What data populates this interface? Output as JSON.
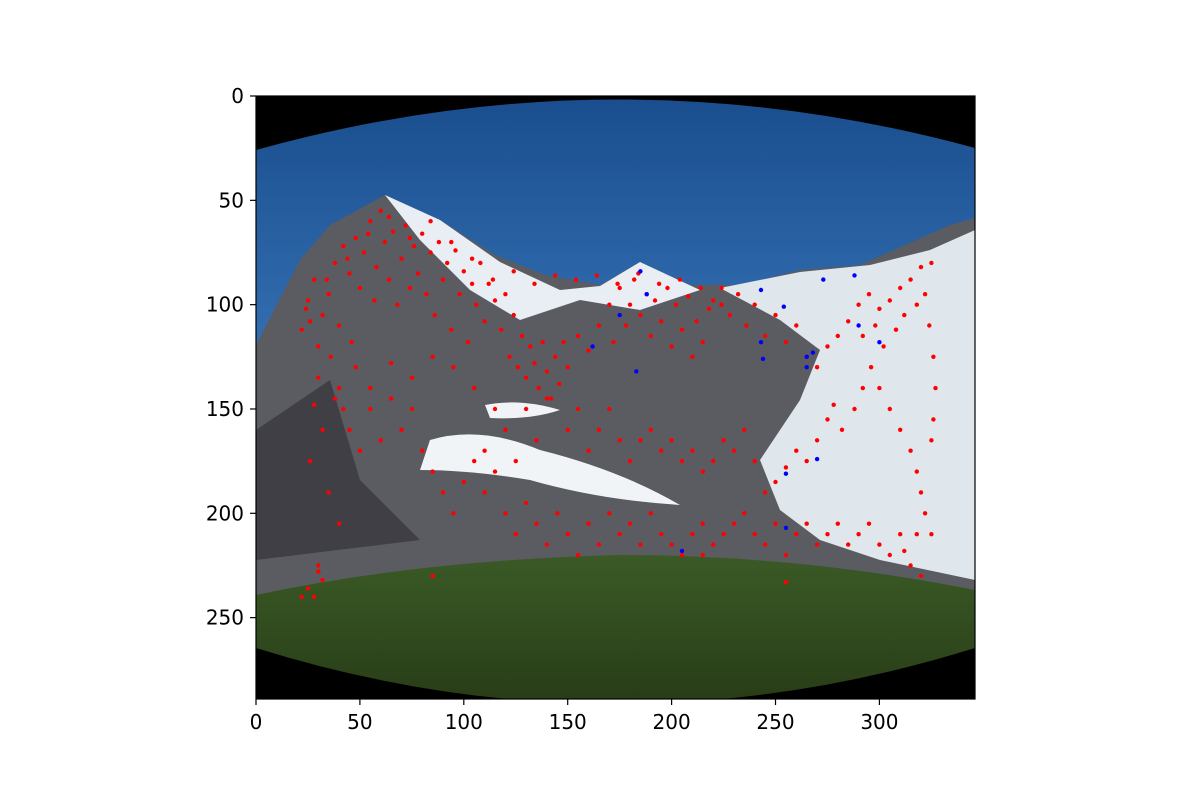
{
  "chart_data": {
    "type": "scatter",
    "title": "",
    "xlabel": "",
    "ylabel": "",
    "xlim": [
      0,
      346
    ],
    "ylim": [
      289,
      0
    ],
    "x_ticks": [
      "0",
      "50",
      "100",
      "150",
      "200",
      "250",
      "300"
    ],
    "y_ticks": [
      "0",
      "50",
      "100",
      "150",
      "200",
      "250"
    ],
    "grid": false,
    "background_image": "mountain photograph (north face with glaciers, blue sky, green meadow) with curved black borders",
    "series": [
      {
        "color": "#ff0000",
        "marker": "dot",
        "points": [
          [
            22,
            112
          ],
          [
            25,
            98
          ],
          [
            28,
            88
          ],
          [
            30,
            120
          ],
          [
            32,
            105
          ],
          [
            35,
            95
          ],
          [
            38,
            80
          ],
          [
            40,
            110
          ],
          [
            42,
            72
          ],
          [
            45,
            85
          ],
          [
            48,
            68
          ],
          [
            50,
            92
          ],
          [
            52,
            75
          ],
          [
            55,
            60
          ],
          [
            57,
            98
          ],
          [
            58,
            82
          ],
          [
            60,
            55
          ],
          [
            62,
            70
          ],
          [
            64,
            88
          ],
          [
            66,
            65
          ],
          [
            68,
            100
          ],
          [
            70,
            78
          ],
          [
            72,
            62
          ],
          [
            74,
            92
          ],
          [
            76,
            72
          ],
          [
            78,
            85
          ],
          [
            80,
            66
          ],
          [
            82,
            95
          ],
          [
            84,
            75
          ],
          [
            86,
            105
          ],
          [
            88,
            70
          ],
          [
            90,
            88
          ],
          [
            92,
            80
          ],
          [
            94,
            112
          ],
          [
            96,
            74
          ],
          [
            98,
            95
          ],
          [
            100,
            84
          ],
          [
            102,
            118
          ],
          [
            104,
            90
          ],
          [
            106,
            100
          ],
          [
            108,
            80
          ],
          [
            110,
            108
          ],
          [
            112,
            90
          ],
          [
            115,
            98
          ],
          [
            118,
            112
          ],
          [
            120,
            95
          ],
          [
            122,
            125
          ],
          [
            124,
            105
          ],
          [
            126,
            130
          ],
          [
            128,
            115
          ],
          [
            130,
            135
          ],
          [
            132,
            120
          ],
          [
            134,
            128
          ],
          [
            136,
            140
          ],
          [
            138,
            118
          ],
          [
            140,
            132
          ],
          [
            142,
            145
          ],
          [
            144,
            125
          ],
          [
            146,
            138
          ],
          [
            148,
            118
          ],
          [
            150,
            130
          ],
          [
            155,
            115
          ],
          [
            160,
            122
          ],
          [
            165,
            110
          ],
          [
            170,
            100
          ],
          [
            172,
            118
          ],
          [
            175,
            92
          ],
          [
            178,
            110
          ],
          [
            180,
            100
          ],
          [
            182,
            88
          ],
          [
            185,
            105
          ],
          [
            188,
            95
          ],
          [
            190,
            115
          ],
          [
            192,
            98
          ],
          [
            195,
            108
          ],
          [
            198,
            92
          ],
          [
            200,
            120
          ],
          [
            202,
            100
          ],
          [
            205,
            112
          ],
          [
            208,
            96
          ],
          [
            210,
            125
          ],
          [
            212,
            108
          ],
          [
            215,
            118
          ],
          [
            218,
            102
          ],
          [
            220,
            98
          ],
          [
            224,
            92
          ],
          [
            228,
            105
          ],
          [
            232,
            95
          ],
          [
            236,
            110
          ],
          [
            240,
            100
          ],
          [
            245,
            115
          ],
          [
            250,
            105
          ],
          [
            255,
            118
          ],
          [
            260,
            110
          ],
          [
            265,
            125
          ],
          [
            270,
            130
          ],
          [
            275,
            120
          ],
          [
            280,
            115
          ],
          [
            285,
            108
          ],
          [
            290,
            100
          ],
          [
            292,
            115
          ],
          [
            295,
            95
          ],
          [
            298,
            110
          ],
          [
            300,
            102
          ],
          [
            302,
            120
          ],
          [
            305,
            98
          ],
          [
            308,
            112
          ],
          [
            310,
            92
          ],
          [
            312,
            105
          ],
          [
            315,
            88
          ],
          [
            318,
            100
          ],
          [
            320,
            82
          ],
          [
            322,
            95
          ],
          [
            325,
            80
          ],
          [
            324,
            110
          ],
          [
            326,
            125
          ],
          [
            327,
            140
          ],
          [
            326,
            155
          ],
          [
            325,
            165
          ],
          [
            30,
            135
          ],
          [
            28,
            148
          ],
          [
            32,
            160
          ],
          [
            26,
            175
          ],
          [
            35,
            190
          ],
          [
            40,
            205
          ],
          [
            30,
            225
          ],
          [
            32,
            232
          ],
          [
            28,
            240
          ],
          [
            25,
            236
          ],
          [
            30,
            228
          ],
          [
            22,
            240
          ],
          [
            40,
            140
          ],
          [
            45,
            160
          ],
          [
            50,
            170
          ],
          [
            55,
            150
          ],
          [
            60,
            165
          ],
          [
            65,
            145
          ],
          [
            70,
            160
          ],
          [
            75,
            150
          ],
          [
            80,
            170
          ],
          [
            85,
            180
          ],
          [
            90,
            190
          ],
          [
            95,
            200
          ],
          [
            100,
            185
          ],
          [
            105,
            175
          ],
          [
            110,
            190
          ],
          [
            115,
            180
          ],
          [
            120,
            200
          ],
          [
            125,
            210
          ],
          [
            130,
            195
          ],
          [
            135,
            205
          ],
          [
            140,
            215
          ],
          [
            145,
            200
          ],
          [
            150,
            210
          ],
          [
            155,
            220
          ],
          [
            160,
            205
          ],
          [
            165,
            215
          ],
          [
            170,
            200
          ],
          [
            175,
            210
          ],
          [
            180,
            205
          ],
          [
            185,
            215
          ],
          [
            190,
            200
          ],
          [
            195,
            210
          ],
          [
            200,
            215
          ],
          [
            205,
            220
          ],
          [
            210,
            210
          ],
          [
            215,
            205
          ],
          [
            220,
            215
          ],
          [
            225,
            210
          ],
          [
            230,
            205
          ],
          [
            235,
            200
          ],
          [
            240,
            210
          ],
          [
            245,
            215
          ],
          [
            250,
            205
          ],
          [
            255,
            220
          ],
          [
            260,
            210
          ],
          [
            265,
            205
          ],
          [
            270,
            215
          ],
          [
            275,
            210
          ],
          [
            280,
            205
          ],
          [
            285,
            215
          ],
          [
            290,
            210
          ],
          [
            295,
            205
          ],
          [
            300,
            215
          ],
          [
            305,
            220
          ],
          [
            310,
            210
          ],
          [
            315,
            225
          ],
          [
            320,
            230
          ],
          [
            325,
            210
          ],
          [
            150,
            160
          ],
          [
            155,
            150
          ],
          [
            160,
            170
          ],
          [
            165,
            160
          ],
          [
            170,
            150
          ],
          [
            175,
            165
          ],
          [
            180,
            175
          ],
          [
            185,
            165
          ],
          [
            190,
            160
          ],
          [
            195,
            170
          ],
          [
            200,
            165
          ],
          [
            205,
            175
          ],
          [
            210,
            170
          ],
          [
            215,
            180
          ],
          [
            220,
            175
          ],
          [
            225,
            165
          ],
          [
            230,
            170
          ],
          [
            235,
            160
          ],
          [
            240,
            175
          ],
          [
            245,
            190
          ],
          [
            250,
            185
          ],
          [
            255,
            178
          ],
          [
            260,
            170
          ],
          [
            265,
            175
          ],
          [
            270,
            165
          ],
          [
            275,
            155
          ],
          [
            278,
            148
          ],
          [
            282,
            160
          ],
          [
            288,
            150
          ],
          [
            292,
            140
          ],
          [
            296,
            130
          ],
          [
            300,
            140
          ],
          [
            305,
            150
          ],
          [
            310,
            160
          ],
          [
            315,
            170
          ],
          [
            318,
            180
          ],
          [
            320,
            190
          ],
          [
            322,
            200
          ],
          [
            318,
            210
          ],
          [
            312,
            218
          ],
          [
            85,
            230
          ],
          [
            255,
            233
          ],
          [
            215,
            220
          ],
          [
            110,
            170
          ],
          [
            120,
            160
          ],
          [
            130,
            150
          ],
          [
            140,
            145
          ],
          [
            135,
            165
          ],
          [
            125,
            175
          ],
          [
            115,
            150
          ],
          [
            105,
            140
          ],
          [
            95,
            130
          ],
          [
            85,
            125
          ],
          [
            75,
            135
          ],
          [
            65,
            128
          ],
          [
            55,
            140
          ],
          [
            48,
            130
          ],
          [
            42,
            150
          ],
          [
            38,
            145
          ],
          [
            46,
            118
          ],
          [
            36,
            125
          ],
          [
            26,
            108
          ],
          [
            24,
            102
          ],
          [
            34,
            88
          ],
          [
            44,
            78
          ],
          [
            54,
            66
          ],
          [
            64,
            58
          ],
          [
            74,
            68
          ],
          [
            84,
            60
          ],
          [
            94,
            70
          ],
          [
            104,
            78
          ],
          [
            114,
            88
          ],
          [
            124,
            84
          ],
          [
            134,
            90
          ],
          [
            144,
            86
          ],
          [
            154,
            88
          ],
          [
            164,
            86
          ],
          [
            174,
            90
          ],
          [
            184,
            85
          ],
          [
            194,
            90
          ],
          [
            204,
            88
          ],
          [
            214,
            92
          ],
          [
            224,
            100
          ]
        ]
      },
      {
        "color": "#0000ff",
        "marker": "dot",
        "points": [
          [
            185,
            84
          ],
          [
            162,
            120
          ],
          [
            188,
            95
          ],
          [
            175,
            105
          ],
          [
            183,
            132
          ],
          [
            243,
            93
          ],
          [
            243,
            118
          ],
          [
            244,
            126
          ],
          [
            254,
            101
          ],
          [
            265,
            125
          ],
          [
            268,
            123
          ],
          [
            265,
            130
          ],
          [
            273,
            88
          ],
          [
            288,
            86
          ],
          [
            290,
            110
          ],
          [
            300,
            118
          ],
          [
            270,
            174
          ],
          [
            255,
            181
          ],
          [
            205,
            218
          ],
          [
            255,
            207
          ]
        ]
      }
    ]
  }
}
